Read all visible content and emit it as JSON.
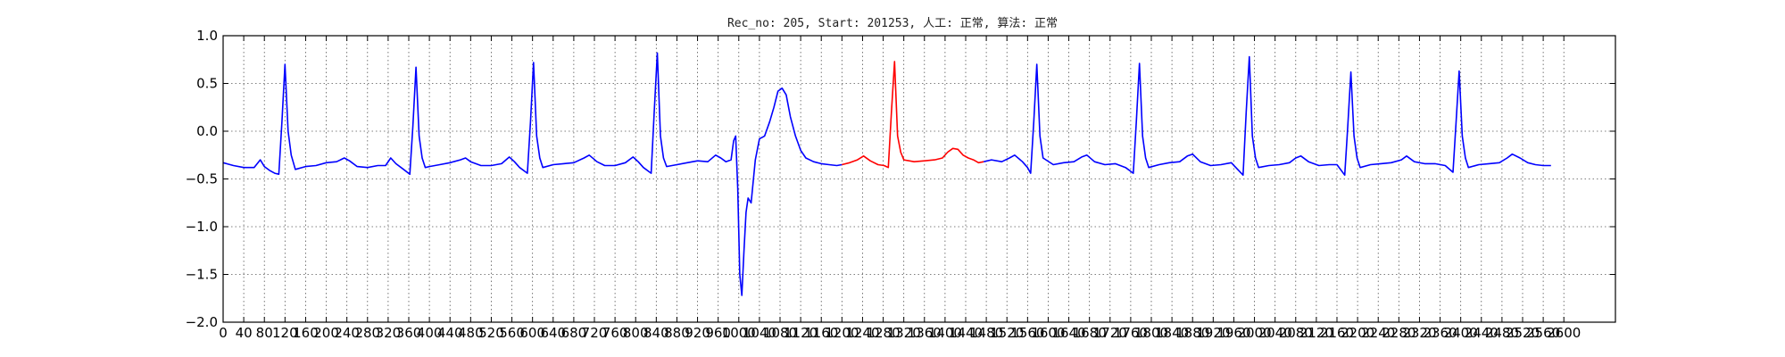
{
  "chart_data": {
    "type": "line",
    "title": "Rec_no: 205, Start: 201253, 人工: 正常, 算法: 正常",
    "xlabel": "",
    "ylabel": "",
    "xlim": [
      0,
      2700
    ],
    "ylim": [
      -2.0,
      1.0
    ],
    "grid": true,
    "x_ticks": [
      0,
      40,
      80,
      120,
      160,
      200,
      240,
      280,
      320,
      360,
      400,
      440,
      480,
      520,
      560,
      600,
      640,
      680,
      720,
      760,
      800,
      840,
      880,
      920,
      960,
      1000,
      1040,
      1080,
      1120,
      1160,
      1200,
      1240,
      1280,
      1320,
      1360,
      1400,
      1440,
      1480,
      1520,
      1560,
      1600,
      1640,
      1680,
      1720,
      1760,
      1800,
      1840,
      1880,
      1920,
      1960,
      2000,
      2040,
      2080,
      2120,
      2160,
      2200,
      2240,
      2280,
      2320,
      2360,
      2400,
      2440,
      2480,
      2520,
      2560,
      2600
    ],
    "y_ticks": [
      1.0,
      0.5,
      0.0,
      -0.5,
      -1.0,
      -1.5,
      -2.0
    ],
    "y_tick_labels": [
      "1.0",
      "0.5",
      "0.0",
      "−0.5",
      "−1.0",
      "−1.5",
      "−2.0"
    ],
    "series": [
      {
        "color": "#0000ff",
        "x": [
          0,
          20,
          40,
          60,
          72,
          80,
          90,
          100,
          108,
          114,
          120,
          126,
          132,
          140,
          160,
          180,
          200,
          220,
          235,
          245,
          260,
          280,
          300,
          315,
          325,
          335,
          350,
          362,
          368,
          374,
          380,
          386,
          392,
          400,
          420,
          440,
          460,
          470,
          480,
          500,
          520,
          540,
          555,
          565,
          575,
          590,
          596,
          602,
          608,
          614,
          620,
          640,
          660,
          680,
          700,
          710,
          725,
          740,
          760,
          780,
          795,
          805,
          815,
          830,
          836,
          842,
          848,
          854,
          860,
          880,
          900,
          920,
          940,
          955,
          965,
          975,
          985,
          990,
          994,
          998,
          1002,
          1006,
          1010,
          1014,
          1018,
          1024,
          1032,
          1040,
          1050,
          1060,
          1068,
          1076,
          1084,
          1092,
          1100,
          1110,
          1120,
          1130,
          1145,
          1160,
          1175,
          1190,
          1200
        ],
        "y": [
          -0.33,
          -0.36,
          -0.38,
          -0.38,
          -0.3,
          -0.37,
          -0.41,
          -0.44,
          -0.45,
          0.1,
          0.7,
          0.0,
          -0.25,
          -0.4,
          -0.37,
          -0.36,
          -0.33,
          -0.32,
          -0.28,
          -0.31,
          -0.37,
          -0.38,
          -0.36,
          -0.36,
          -0.28,
          -0.34,
          -0.4,
          -0.45,
          0.05,
          0.67,
          -0.05,
          -0.28,
          -0.38,
          -0.37,
          -0.35,
          -0.33,
          -0.3,
          -0.28,
          -0.32,
          -0.36,
          -0.36,
          -0.34,
          -0.27,
          -0.32,
          -0.38,
          -0.44,
          0.1,
          0.72,
          -0.05,
          -0.28,
          -0.38,
          -0.35,
          -0.34,
          -0.33,
          -0.28,
          -0.25,
          -0.32,
          -0.36,
          -0.36,
          -0.33,
          -0.27,
          -0.32,
          -0.38,
          -0.44,
          0.2,
          0.82,
          -0.05,
          -0.28,
          -0.37,
          -0.35,
          -0.33,
          -0.31,
          -0.32,
          -0.25,
          -0.28,
          -0.32,
          -0.3,
          -0.1,
          -0.05,
          -0.6,
          -1.5,
          -1.72,
          -1.25,
          -0.85,
          -0.7,
          -0.75,
          -0.3,
          -0.08,
          -0.05,
          0.1,
          0.25,
          0.42,
          0.45,
          0.38,
          0.15,
          -0.05,
          -0.2,
          -0.28,
          -0.32,
          -0.34,
          -0.35,
          -0.36,
          -0.35
        ]
      },
      {
        "color": "#ff0000",
        "x": [
          1200,
          1215,
          1230,
          1242,
          1255,
          1270,
          1282,
          1290,
          1296,
          1302,
          1308,
          1314,
          1320,
          1340,
          1360,
          1380,
          1395,
          1405,
          1415,
          1425,
          1435,
          1445,
          1455,
          1465,
          1475
        ],
        "y": [
          -0.35,
          -0.33,
          -0.3,
          -0.26,
          -0.31,
          -0.35,
          -0.36,
          -0.38,
          0.2,
          0.73,
          -0.05,
          -0.22,
          -0.3,
          -0.32,
          -0.31,
          -0.3,
          -0.28,
          -0.22,
          -0.18,
          -0.19,
          -0.25,
          -0.28,
          -0.3,
          -0.33,
          -0.32
        ]
      },
      {
        "color": "#0000ff",
        "x": [
          1475,
          1490,
          1510,
          1525,
          1535,
          1550,
          1560,
          1566,
          1572,
          1578,
          1584,
          1590,
          1610,
          1630,
          1650,
          1665,
          1675,
          1690,
          1710,
          1730,
          1750,
          1765,
          1771,
          1777,
          1783,
          1789,
          1795,
          1815,
          1835,
          1855,
          1870,
          1880,
          1895,
          1915,
          1935,
          1955,
          1978,
          1984,
          1990,
          1996,
          2002,
          2008,
          2028,
          2048,
          2068,
          2080,
          2090,
          2105,
          2125,
          2145,
          2160,
          2175,
          2181,
          2187,
          2193,
          2199,
          2205,
          2225,
          2245,
          2265,
          2285,
          2295,
          2310,
          2330,
          2350,
          2370,
          2385,
          2391,
          2397,
          2403,
          2409,
          2415,
          2435,
          2455,
          2475,
          2490,
          2500,
          2515,
          2530,
          2545,
          2560,
          2575
        ],
        "y": [
          -0.32,
          -0.3,
          -0.32,
          -0.28,
          -0.25,
          -0.32,
          -0.38,
          -0.44,
          0.1,
          0.7,
          -0.05,
          -0.28,
          -0.35,
          -0.33,
          -0.32,
          -0.27,
          -0.25,
          -0.32,
          -0.35,
          -0.34,
          -0.38,
          -0.44,
          0.1,
          0.71,
          -0.05,
          -0.28,
          -0.38,
          -0.35,
          -0.33,
          -0.32,
          -0.26,
          -0.24,
          -0.32,
          -0.36,
          -0.35,
          -0.33,
          -0.46,
          0.2,
          0.78,
          -0.05,
          -0.28,
          -0.38,
          -0.36,
          -0.35,
          -0.33,
          -0.28,
          -0.26,
          -0.32,
          -0.36,
          -0.35,
          -0.35,
          -0.46,
          0.05,
          0.62,
          -0.05,
          -0.28,
          -0.38,
          -0.35,
          -0.34,
          -0.33,
          -0.3,
          -0.26,
          -0.32,
          -0.34,
          -0.34,
          -0.36,
          -0.43,
          0.1,
          0.63,
          -0.05,
          -0.28,
          -0.38,
          -0.35,
          -0.34,
          -0.33,
          -0.28,
          -0.24,
          -0.28,
          -0.33,
          -0.35,
          -0.36,
          -0.36
        ]
      }
    ]
  }
}
